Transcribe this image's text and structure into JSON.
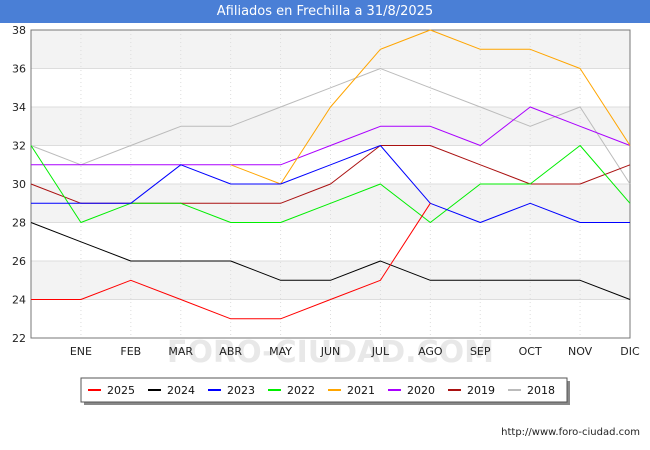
{
  "header": {
    "title": "Afiliados en Frechilla a 31/8/2025"
  },
  "footer": {
    "url": "http://www.foro-ciudad.com"
  },
  "watermark": "FORO-CIUDAD.COM",
  "chart_data": {
    "type": "line",
    "title": "Afiliados en Frechilla a 31/8/2025",
    "xlabel": "",
    "ylabel": "",
    "categories": [
      "",
      "ENE",
      "FEB",
      "MAR",
      "ABR",
      "MAY",
      "JUN",
      "JUL",
      "AGO",
      "SEP",
      "OCT",
      "NOV",
      "DIC"
    ],
    "ylim": [
      22,
      38
    ],
    "yticks": [
      22,
      24,
      26,
      28,
      30,
      32,
      34,
      36,
      38
    ],
    "grid": true,
    "legend_position": "bottom",
    "series": [
      {
        "name": "2025",
        "color": "#ff0000",
        "values": [
          24,
          24,
          25,
          24,
          23,
          23,
          24,
          25,
          29,
          null,
          null,
          null,
          null
        ]
      },
      {
        "name": "2024",
        "color": "#000000",
        "values": [
          28,
          27,
          26,
          26,
          26,
          25,
          25,
          26,
          25,
          25,
          25,
          25,
          24
        ]
      },
      {
        "name": "2023",
        "color": "#0000ff",
        "values": [
          29,
          29,
          29,
          31,
          30,
          30,
          31,
          32,
          29,
          28,
          29,
          28,
          28
        ]
      },
      {
        "name": "2022",
        "color": "#00ee00",
        "values": [
          32,
          28,
          29,
          29,
          28,
          28,
          29,
          30,
          28,
          30,
          30,
          32,
          29
        ]
      },
      {
        "name": "2021",
        "color": "#ffa500",
        "values": [
          null,
          null,
          null,
          null,
          31,
          30,
          34,
          37,
          38,
          37,
          37,
          36,
          32
        ]
      },
      {
        "name": "2020",
        "color": "#aa00ff",
        "values": [
          31,
          31,
          31,
          31,
          31,
          31,
          32,
          33,
          33,
          32,
          34,
          33,
          32
        ]
      },
      {
        "name": "2019",
        "color": "#aa1111",
        "values": [
          30,
          29,
          29,
          29,
          29,
          29,
          30,
          32,
          32,
          31,
          30,
          30,
          31
        ]
      },
      {
        "name": "2018",
        "color": "#bbbbbb",
        "values": [
          32,
          31,
          32,
          33,
          33,
          34,
          35,
          36,
          35,
          34,
          33,
          34,
          30
        ]
      }
    ]
  }
}
